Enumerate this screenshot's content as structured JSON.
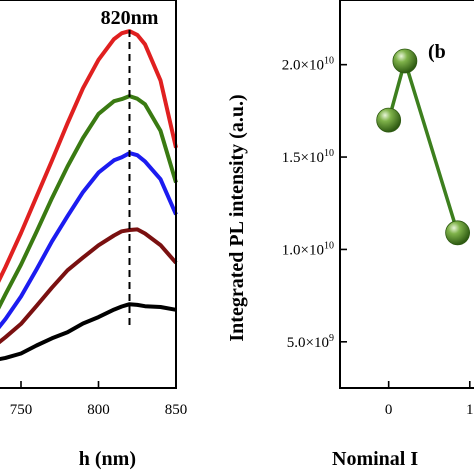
{
  "chart_data": [
    {
      "type": "line",
      "xlabel": "h (nm)",
      "xlim": [
        730,
        850
      ],
      "ylim": [
        0,
        1
      ],
      "x_ticks": [
        750,
        800,
        850
      ],
      "x_tick_labels": [
        "750",
        "800",
        "850"
      ],
      "annotation": {
        "text": "820nm",
        "x": 820
      },
      "x": [
        730,
        740,
        750,
        760,
        770,
        780,
        790,
        800,
        810,
        815,
        820,
        825,
        830,
        840,
        850
      ],
      "series": [
        {
          "color": "#e02020",
          "values": [
            0.18,
            0.27,
            0.37,
            0.48,
            0.59,
            0.7,
            0.8,
            0.88,
            0.94,
            0.96,
            0.97,
            0.96,
            0.93,
            0.82,
            0.62
          ]
        },
        {
          "color": "#3a7a12",
          "values": [
            0.1,
            0.19,
            0.28,
            0.38,
            0.48,
            0.57,
            0.65,
            0.72,
            0.76,
            0.77,
            0.78,
            0.77,
            0.75,
            0.67,
            0.52
          ]
        },
        {
          "color": "#1c1cf0",
          "values": [
            0.06,
            0.12,
            0.19,
            0.27,
            0.35,
            0.42,
            0.49,
            0.55,
            0.59,
            0.6,
            0.61,
            0.6,
            0.58,
            0.53,
            0.43
          ]
        },
        {
          "color": "#7a1010",
          "values": [
            0.03,
            0.07,
            0.11,
            0.16,
            0.21,
            0.26,
            0.3,
            0.34,
            0.37,
            0.38,
            0.38,
            0.38,
            0.37,
            0.34,
            0.29
          ]
        },
        {
          "color": "#000000",
          "values": [
            0.0,
            0.01,
            0.02,
            0.04,
            0.06,
            0.08,
            0.11,
            0.13,
            0.15,
            0.155,
            0.16,
            0.16,
            0.16,
            0.16,
            0.15
          ]
        }
      ]
    },
    {
      "type": "line",
      "panel_label": "(b",
      "ylabel": "Integrated PL intensity (a.u.)",
      "xlabel": "Nominal I",
      "xlim": [
        -0.6,
        1.2
      ],
      "ylim": [
        2500000000.0,
        23500000000.0
      ],
      "x_ticks": [
        0,
        1
      ],
      "x_tick_labels": [
        "0",
        "1"
      ],
      "y_ticks": [
        5000000000.0,
        10000000000.0,
        15000000000.0,
        20000000000.0
      ],
      "y_tick_labels": [
        {
          "mantissa": "5.0×10",
          "exp": "9"
        },
        {
          "mantissa": "1.0×10",
          "exp": "10"
        },
        {
          "mantissa": "1.5×10",
          "exp": "10"
        },
        {
          "mantissa": "2.0×10",
          "exp": "10"
        }
      ],
      "series": [
        {
          "color": "#3d7f1e",
          "x": [
            0.0,
            0.2,
            0.85
          ],
          "values": [
            17000000000.0,
            20200000000.0,
            10900000000.0
          ]
        }
      ]
    }
  ]
}
